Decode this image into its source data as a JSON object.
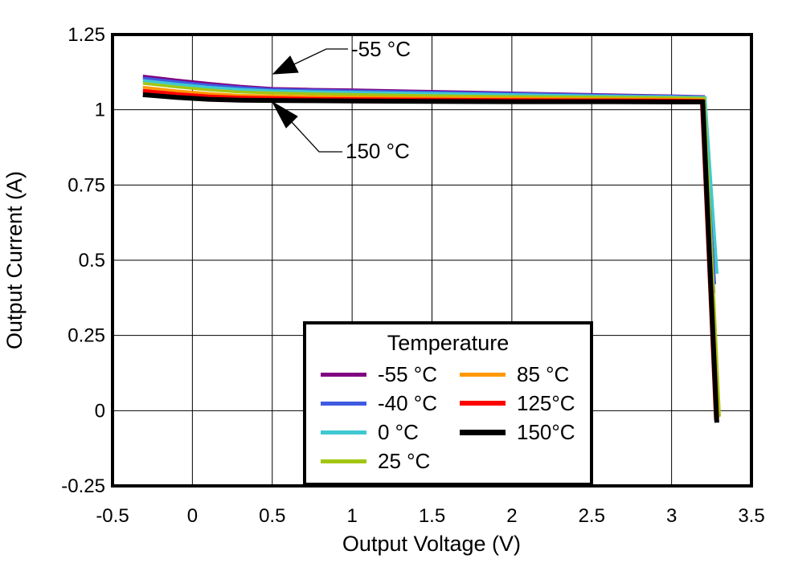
{
  "chart_data": {
    "type": "line",
    "title": "",
    "xlabel": "Output Voltage (V)",
    "ylabel": "Output Current (A)",
    "xlim": [
      -0.5,
      3.5
    ],
    "ylim": [
      -0.25,
      1.25
    ],
    "xticks": [
      "-0.5",
      "0",
      "0.5",
      "1",
      "1.5",
      "2",
      "2.5",
      "3",
      "3.5"
    ],
    "yticks": [
      "1.25",
      "1",
      "0.75",
      "0.5",
      "0.25",
      "0",
      "-0.25"
    ],
    "grid": true,
    "legend_title": "Temperature",
    "legend_position": "bottom-center-inside",
    "annotations": [
      {
        "text": "-55 °C",
        "points_to_series": "-55 °C"
      },
      {
        "text": "150 °C",
        "points_to_series": "150°C"
      }
    ],
    "series": [
      {
        "name": "m55",
        "legend_label": "-55 °C",
        "color": "#800080",
        "line_width": 3.5,
        "points": [
          [
            -0.31,
            1.112
          ],
          [
            -0.1,
            1.099
          ],
          [
            0.1,
            1.088
          ],
          [
            0.3,
            1.078
          ],
          [
            0.5,
            1.071
          ],
          [
            0.75,
            1.068
          ],
          [
            1,
            1.066
          ],
          [
            1.5,
            1.061
          ],
          [
            2,
            1.056
          ],
          [
            2.5,
            1.051
          ],
          [
            3,
            1.046
          ],
          [
            3.2,
            1.044
          ],
          [
            3.265,
            0.39
          ]
        ]
      },
      {
        "name": "m40",
        "legend_label": "-40 °C",
        "color": "#3E5BE1",
        "line_width": 3.5,
        "points": [
          [
            -0.31,
            1.105
          ],
          [
            -0.1,
            1.093
          ],
          [
            0.1,
            1.082
          ],
          [
            0.3,
            1.074
          ],
          [
            0.5,
            1.068
          ],
          [
            0.75,
            1.065
          ],
          [
            1,
            1.063
          ],
          [
            1.5,
            1.058
          ],
          [
            2,
            1.054
          ],
          [
            2.5,
            1.049
          ],
          [
            3,
            1.045
          ],
          [
            3.2,
            1.043
          ],
          [
            3.27,
            0.42
          ]
        ]
      },
      {
        "name": "t0",
        "legend_label": "0 °C",
        "color": "#3FC8D2",
        "line_width": 3.5,
        "points": [
          [
            -0.31,
            1.097
          ],
          [
            -0.1,
            1.085
          ],
          [
            0.1,
            1.075
          ],
          [
            0.3,
            1.068
          ],
          [
            0.5,
            1.063
          ],
          [
            0.75,
            1.06
          ],
          [
            1,
            1.058
          ],
          [
            1.5,
            1.054
          ],
          [
            2,
            1.05
          ],
          [
            2.5,
            1.046
          ],
          [
            3,
            1.043
          ],
          [
            3.21,
            1.041
          ],
          [
            3.285,
            0.455
          ]
        ]
      },
      {
        "name": "t25",
        "legend_label": "25 °C",
        "color": "#A2C613",
        "line_width": 3.5,
        "points": [
          [
            -0.31,
            1.088
          ],
          [
            -0.1,
            1.076
          ],
          [
            0.1,
            1.066
          ],
          [
            0.3,
            1.059
          ],
          [
            0.5,
            1.056
          ],
          [
            0.75,
            1.053
          ],
          [
            1,
            1.051
          ],
          [
            1.5,
            1.047
          ],
          [
            2,
            1.044
          ],
          [
            2.5,
            1.042
          ],
          [
            3,
            1.04
          ],
          [
            3.205,
            1.038
          ],
          [
            3.3,
            -0.02
          ]
        ]
      },
      {
        "name": "t85",
        "legend_label": "85 °C",
        "color": "#FF9900",
        "line_width": 3.5,
        "points": [
          [
            -0.31,
            1.075
          ],
          [
            -0.1,
            1.063
          ],
          [
            0.1,
            1.054
          ],
          [
            0.3,
            1.048
          ],
          [
            0.5,
            1.046
          ],
          [
            0.75,
            1.044
          ],
          [
            1,
            1.042
          ],
          [
            1.5,
            1.04
          ],
          [
            2,
            1.038
          ],
          [
            2.5,
            1.036
          ],
          [
            3,
            1.035
          ],
          [
            3.2,
            1.033
          ],
          [
            3.29,
            -0.025
          ]
        ]
      },
      {
        "name": "t125",
        "legend_label": "125°C",
        "color": "#FF0000",
        "line_width": 5,
        "points": [
          [
            -0.31,
            1.063
          ],
          [
            -0.1,
            1.052
          ],
          [
            0.1,
            1.044
          ],
          [
            0.3,
            1.04
          ],
          [
            0.5,
            1.038
          ],
          [
            0.75,
            1.036
          ],
          [
            1,
            1.035
          ],
          [
            1.5,
            1.033
          ],
          [
            2,
            1.032
          ],
          [
            2.5,
            1.031
          ],
          [
            3,
            1.03
          ],
          [
            3.19,
            1.029
          ],
          [
            3.278,
            -0.03
          ]
        ]
      },
      {
        "name": "t150",
        "legend_label": "150°C",
        "color": "#000000",
        "line_width": 6,
        "points": [
          [
            -0.31,
            1.05
          ],
          [
            -0.1,
            1.041
          ],
          [
            0.1,
            1.035
          ],
          [
            0.3,
            1.032
          ],
          [
            0.5,
            1.031
          ],
          [
            0.75,
            1.03
          ],
          [
            1,
            1.029
          ],
          [
            1.5,
            1.028
          ],
          [
            2,
            1.027
          ],
          [
            2.5,
            1.027
          ],
          [
            3,
            1.026
          ],
          [
            3.195,
            1.026
          ],
          [
            3.283,
            -0.04
          ]
        ]
      }
    ]
  }
}
